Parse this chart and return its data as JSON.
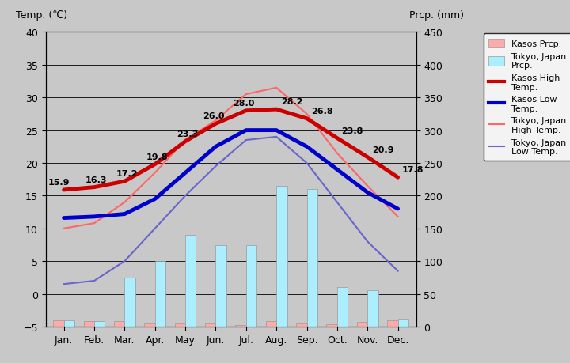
{
  "months": [
    "Jan.",
    "Feb.",
    "Mar.",
    "Apr.",
    "May",
    "Jun.",
    "Jul.",
    "Aug.",
    "Sep.",
    "Oct.",
    "Nov.",
    "Dec."
  ],
  "kasos_high": [
    15.9,
    16.3,
    17.2,
    19.8,
    23.3,
    26.0,
    28.0,
    28.2,
    26.8,
    23.8,
    20.9,
    17.8
  ],
  "kasos_low": [
    11.6,
    11.8,
    12.2,
    14.5,
    18.5,
    22.5,
    25.0,
    25.0,
    22.5,
    19.0,
    15.5,
    13.0
  ],
  "tokyo_high": [
    10.0,
    10.8,
    14.0,
    18.5,
    23.5,
    26.5,
    30.5,
    31.5,
    27.5,
    21.5,
    16.5,
    11.8
  ],
  "tokyo_low": [
    1.5,
    2.0,
    5.0,
    10.0,
    15.0,
    19.5,
    23.5,
    24.0,
    20.0,
    14.0,
    8.0,
    3.5
  ],
  "kasos_prcp_mm": [
    10,
    8,
    8,
    5,
    5,
    5,
    3,
    8,
    5,
    4,
    7,
    10
  ],
  "tokyo_prcp_mm": [
    10,
    8,
    75,
    100,
    140,
    125,
    125,
    215,
    210,
    60,
    55,
    12
  ],
  "kasos_high_color": "#cc0000",
  "kasos_low_color": "#0000cc",
  "tokyo_high_color": "#ff6666",
  "tokyo_low_color": "#6666cc",
  "kasos_prcp_color": "#ffaaaa",
  "tokyo_prcp_color": "#aaeeff",
  "bg_color": "#c8c8c8",
  "title_left": "Temp. (℃)",
  "title_right": "Prcp. (mm)",
  "ylim_left": [
    -5,
    40
  ],
  "ylim_right": [
    0,
    450
  ],
  "yticks_left": [
    -5,
    0,
    5,
    10,
    15,
    20,
    25,
    30,
    35,
    40
  ],
  "yticks_right": [
    0,
    50,
    100,
    150,
    200,
    250,
    300,
    350,
    400,
    450
  ]
}
